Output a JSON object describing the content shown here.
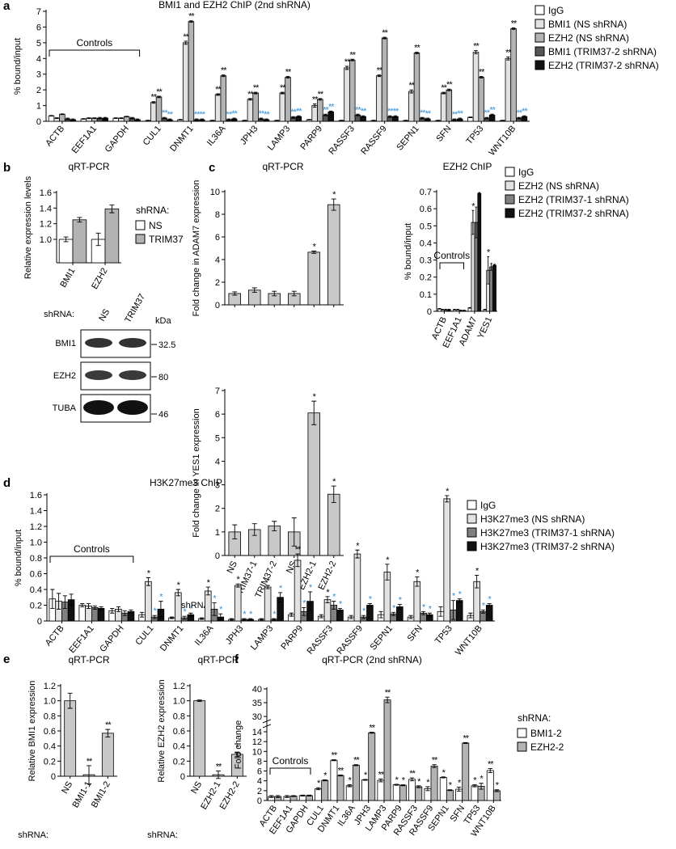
{
  "chart_data": [
    {
      "type": "bar",
      "panel": "a",
      "title": "BMI1 and EZH2 ChIP (2nd shRNA)",
      "ylabel": "% bound/input",
      "annotation": "Controls",
      "categories": [
        "ACTB",
        "EEF1A1",
        "GAPDH",
        "CUL1",
        "DNMT1",
        "IL36A",
        "JPH3",
        "LAMP3",
        "PARP9",
        "RASSF3",
        "RASSF9",
        "SEPN1",
        "SFN",
        "TP53",
        "WNT10B"
      ],
      "ylim": [
        0,
        7
      ],
      "yticks": [
        0,
        1,
        2,
        3,
        4,
        5,
        6,
        7
      ],
      "series": [
        {
          "name": "IgG",
          "color": "#ffffff",
          "values": [
            0.35,
            0.15,
            0.2,
            0.05,
            0.1,
            0.05,
            0.05,
            0.05,
            0.1,
            0.05,
            0.05,
            0.05,
            0.05,
            0.25,
            0.05
          ],
          "errors": [
            0.02,
            0.02,
            0.02,
            0.02,
            0.02,
            0.02,
            0.02,
            0.02,
            0.02,
            0.02,
            0.02,
            0.02,
            0.02,
            0.02,
            0.02
          ]
        },
        {
          "name": "BMI1 (NS shRNA)",
          "color": "#e2e2e2",
          "values": [
            0.2,
            0.2,
            0.2,
            1.2,
            5.0,
            1.7,
            1.4,
            1.8,
            1.0,
            3.4,
            2.9,
            1.9,
            1.8,
            4.4,
            4.0
          ],
          "errors": [
            0.02,
            0.02,
            0.02,
            0.05,
            0.1,
            0.05,
            0.05,
            0.05,
            0.1,
            0.1,
            0.05,
            0.1,
            0.05,
            0.1,
            0.1
          ],
          "sig": [
            null,
            null,
            null,
            "**",
            "**",
            "**",
            "**",
            "**",
            "**",
            "**",
            "**",
            "**",
            "**",
            "**",
            "**"
          ]
        },
        {
          "name": "EZH2 (NS shRNA)",
          "color": "#b3b3b3",
          "values": [
            0.45,
            0.2,
            0.3,
            1.55,
            6.35,
            2.9,
            1.8,
            2.8,
            1.4,
            3.9,
            5.3,
            4.35,
            2.0,
            2.8,
            5.9
          ],
          "errors": [
            0.02,
            0.02,
            0.02,
            0.05,
            0.05,
            0.05,
            0.05,
            0.05,
            0.05,
            0.05,
            0.05,
            0.05,
            0.05,
            0.05,
            0.05
          ],
          "sig": [
            null,
            null,
            null,
            "**",
            "**",
            "**",
            "**",
            "**",
            "**",
            "**",
            "**",
            "**",
            "**",
            "**",
            "**"
          ]
        },
        {
          "name": "BMI1 (TRIM37-2 shRNA)",
          "color": "#555555",
          "values": [
            0.15,
            0.2,
            0.2,
            0.2,
            0.1,
            0.1,
            0.15,
            0.25,
            0.4,
            0.4,
            0.3,
            0.2,
            0.1,
            0.2,
            0.2
          ],
          "errors": [
            0.05,
            0.05,
            0.05,
            0.05,
            0.05,
            0.05,
            0.05,
            0.05,
            0.05,
            0.05,
            0.05,
            0.05,
            0.05,
            0.05,
            0.05
          ],
          "sig": [
            null,
            null,
            null,
            "**",
            "**",
            "**",
            "**",
            "**",
            "**",
            "**",
            "**",
            "**",
            "**",
            "**",
            "**"
          ],
          "sig_color": "#3a8fd0"
        },
        {
          "name": "EZH2 (TRIM37-2 shRNA)",
          "color": "#111111",
          "values": [
            0.1,
            0.2,
            0.1,
            0.1,
            0.1,
            0.15,
            0.1,
            0.3,
            0.6,
            0.3,
            0.3,
            0.15,
            0.15,
            0.4,
            0.3
          ],
          "errors": [
            0.05,
            0.05,
            0.05,
            0.05,
            0.05,
            0.05,
            0.05,
            0.05,
            0.05,
            0.05,
            0.05,
            0.05,
            0.05,
            0.05,
            0.05
          ],
          "sig": [
            null,
            null,
            null,
            "**",
            "**",
            "**",
            "**",
            "**",
            "**",
            "**",
            "**",
            "**",
            "**",
            "**",
            "**"
          ],
          "sig_color": "#3a8fd0"
        }
      ]
    },
    {
      "type": "bar",
      "panel": "b",
      "title": "qRT-PCR",
      "ylabel": "Relative expression levels",
      "legend_title": "shRNA:",
      "categories": [
        "BMI1",
        "EZH2"
      ],
      "ylim": [
        0.7,
        1.6
      ],
      "yticks": [
        {
          "value": 1,
          "label": "1.0"
        },
        1.2,
        1.4,
        1.6
      ],
      "series": [
        {
          "name": "NS",
          "color": "#ffffff",
          "values": [
            1.0,
            1.0
          ],
          "errors": [
            0.03,
            0.08
          ]
        },
        {
          "name": "TRIM37",
          "color": "#b3b3b3",
          "values": [
            1.25,
            1.39
          ],
          "errors": [
            0.03,
            0.05
          ]
        }
      ]
    },
    {
      "type": "bar",
      "panel": "c",
      "title": "qRT-PCR",
      "ylabel": "Fold change in ADAM7 expression",
      "categories": [
        null,
        null,
        null,
        null,
        null,
        null
      ],
      "ylim": [
        0,
        10
      ],
      "yticks": [
        0,
        2,
        4,
        6,
        8,
        10
      ],
      "color": "#c8c8c8",
      "values": [
        1.0,
        1.3,
        1.0,
        1.0,
        4.65,
        8.85
      ],
      "errors": [
        0.15,
        0.2,
        0.2,
        0.2,
        0.1,
        0.5
      ],
      "sig": [
        null,
        null,
        null,
        null,
        "*",
        "*"
      ]
    },
    {
      "type": "bar",
      "ylabel": "Fold change in YES1 expression",
      "xlabel": "shRNA:",
      "categories": [
        "NS",
        "TRIM37-1",
        "TRIM37-2",
        "NS",
        "EZH2-1",
        "EZH2-2"
      ],
      "ylim": [
        0,
        7
      ],
      "yticks": [
        0,
        1,
        2,
        3,
        4,
        5,
        6,
        7
      ],
      "color": "#c8c8c8",
      "values": [
        1.0,
        1.1,
        1.25,
        1.0,
        6.05,
        2.6
      ],
      "errors": [
        0.3,
        0.25,
        0.2,
        0.6,
        0.5,
        0.35
      ],
      "sig": [
        null,
        null,
        null,
        null,
        "*",
        "*"
      ]
    },
    {
      "type": "bar",
      "title": "EZH2 ChIP",
      "ylabel": "% bound/input",
      "annotation": "Controls",
      "categories": [
        "ACTB",
        "EEF1A1",
        "ADAM7",
        "YES1"
      ],
      "ylim": [
        0,
        0.7
      ],
      "yticks": [
        0,
        0.1,
        0.2,
        0.3,
        0.4,
        0.5,
        0.6,
        0.7
      ],
      "series": [
        {
          "name": "IgG",
          "color": "#ffffff",
          "values": [
            0.015,
            0.01,
            0.02,
            0.01
          ],
          "errors": [
            0.002,
            0.002,
            0.002,
            0.002
          ]
        },
        {
          "name": "EZH2 (NS shRNA)",
          "color": "#e2e2e2",
          "values": [
            0.01,
            0.01,
            0.52,
            0.24
          ],
          "errors": [
            0.002,
            0.002,
            0.07,
            0.08
          ],
          "sig": [
            null,
            null,
            "*",
            "*"
          ]
        },
        {
          "name": "EZH2 (TRIM37-1 shRNA)",
          "color": "#808080",
          "values": [
            0.01,
            0.005,
            0.52,
            0.26
          ],
          "errors": [
            0.002,
            0.002,
            0.09,
            0.02
          ]
        },
        {
          "name": "EZH2 (TRIM37-2 shRNA)",
          "color": "#111111",
          "values": [
            0.01,
            0.005,
            0.69,
            0.27
          ],
          "errors": [
            0.002,
            0.002,
            0.005,
            0.005
          ]
        }
      ]
    },
    {
      "type": "bar",
      "panel": "d",
      "title": "H3K27me3 ChIP",
      "ylabel": "% bound/input",
      "annotation": "Controls",
      "categories": [
        "ACTB",
        "EEF1A1",
        "GAPDH",
        "CUL1",
        "DNMT1",
        "IL36A",
        "JPH3",
        "LAMP3",
        "PARP9",
        "RASSF3",
        "RASSF9",
        "SEPN1",
        "SFN",
        "TP53",
        "WNT10B"
      ],
      "ylim": [
        0,
        1.6
      ],
      "yticks": [
        0,
        0.2,
        0.4,
        0.6,
        0.8,
        {
          "value": 1,
          "label": "1.0"
        },
        1.2,
        1.4,
        1.6
      ],
      "series": [
        {
          "name": "IgG",
          "color": "#ffffff",
          "values": [
            0.28,
            0.2,
            0.13,
            0.08,
            0.04,
            0.03,
            0.02,
            0.02,
            0.08,
            0.06,
            0.05,
            0.08,
            0.05,
            0.12,
            0.07
          ],
          "errors": [
            0.12,
            0.02,
            0.03,
            0.03,
            0.01,
            0.01,
            0.01,
            0.01,
            0.02,
            0.02,
            0.02,
            0.04,
            0.02,
            0.06,
            0.03
          ]
        },
        {
          "name": "H3K27me3 (NS shRNA)",
          "color": "#e2e2e2",
          "values": [
            0.25,
            0.19,
            0.15,
            0.5,
            0.36,
            0.38,
            0.45,
            0.43,
            0.77,
            0.27,
            0.85,
            0.62,
            0.5,
            1.55,
            0.5
          ],
          "errors": [
            0.1,
            0.03,
            0.03,
            0.05,
            0.04,
            0.05,
            0.02,
            0.02,
            0.08,
            0.04,
            0.05,
            0.1,
            0.06,
            0.04,
            0.08
          ],
          "sig": [
            null,
            null,
            null,
            "*",
            "*",
            "*",
            "*",
            "*",
            "**",
            "*",
            "*",
            "*",
            "*",
            "*",
            "*"
          ]
        },
        {
          "name": "H3K27me3 (TRIM37-1 shRNA)",
          "color": "#808080",
          "values": [
            0.24,
            0.17,
            0.1,
            0.05,
            0.04,
            0.15,
            0.02,
            0.02,
            0.12,
            0.2,
            0.05,
            0.09,
            0.1,
            0.14,
            0.12
          ],
          "errors": [
            0.08,
            0.02,
            0.03,
            0.02,
            0.02,
            0.08,
            0.01,
            0.01,
            0.05,
            0.05,
            0.02,
            0.02,
            0.02,
            0.12,
            0.02
          ],
          "sig": [
            null,
            null,
            null,
            "*",
            "*",
            "*",
            "*",
            "*",
            "*",
            "*",
            "*",
            "*",
            "*",
            "*",
            "*"
          ],
          "sig_color": "#3a8fd0"
        },
        {
          "name": "H3K27me3 (TRIM37-2 shRNA)",
          "color": "#111111",
          "values": [
            0.27,
            0.16,
            0.12,
            0.15,
            0.08,
            0.05,
            0.02,
            0.3,
            0.25,
            0.14,
            0.2,
            0.18,
            0.08,
            0.26,
            0.2
          ],
          "errors": [
            0.07,
            0.02,
            0.02,
            0.1,
            0.02,
            0.04,
            0.01,
            0.06,
            0.12,
            0.02,
            0.02,
            0.03,
            0.02,
            0.02,
            0.02
          ],
          "sig": [
            null,
            null,
            null,
            "*",
            "*",
            "*",
            "*",
            "*",
            "*",
            "*",
            "*",
            "*",
            "*",
            "*",
            "*"
          ],
          "sig_color": "#3a8fd0"
        }
      ]
    },
    {
      "type": "bar",
      "panel": "e",
      "title": "qRT-PCR",
      "ylabel": "Relative BMI1 expression",
      "xlabel": "shRNA:",
      "categories": [
        "NS",
        "BMI1-1",
        "BMI1-2"
      ],
      "ylim": [
        0,
        1.2
      ],
      "yticks": [
        0,
        0.2,
        0.4,
        0.6,
        0.8,
        {
          "value": 1,
          "label": "1.0"
        },
        1.2
      ],
      "color": "#c8c8c8",
      "values": [
        1.0,
        0.02,
        0.57
      ],
      "errors": [
        0.1,
        0.12,
        0.05
      ],
      "sig": [
        null,
        "**",
        "**"
      ]
    },
    {
      "type": "bar",
      "title": "qRT-PCR",
      "ylabel": "Relative EZH2 expression",
      "xlabel": "shRNA:",
      "categories": [
        "NS",
        "EZH2-1",
        "EZH2-2"
      ],
      "ylim": [
        0,
        1.2
      ],
      "yticks": [
        0,
        0.2,
        0.4,
        0.6,
        0.8,
        {
          "value": 1,
          "label": "1.0"
        },
        1.2
      ],
      "color": "#c8c8c8",
      "values": [
        1.0,
        0.02,
        0.29
      ],
      "errors": [
        0.01,
        0.05,
        0.03
      ],
      "sig": [
        null,
        "**",
        "*"
      ]
    },
    {
      "type": "bar",
      "panel": "f",
      "title": "qRT-PCR (2nd shRNA)",
      "ylabel": "Fold change",
      "annotation": "Controls",
      "legend_title": "shRNA:",
      "categories": [
        "ACTB",
        "EEF1A1",
        "GAPDH",
        "CUL1",
        "DNMT1",
        "IL36A",
        "JPH3",
        "LAMP3",
        "PARP9",
        "RASSF3",
        "RASSF9",
        "SEPN1",
        "SFN",
        "TP53",
        "WNT10B"
      ],
      "ylim": [
        0,
        40
      ],
      "ybreak": [
        15,
        28
      ],
      "yticks": [
        0,
        2,
        4,
        6,
        8,
        10,
        12,
        14,
        30,
        35,
        40
      ],
      "series": [
        {
          "name": "BMI1-2",
          "color": "#ffffff",
          "values": [
            0.8,
            0.8,
            1.0,
            2.4,
            8.2,
            3.0,
            4.2,
            4.1,
            3.2,
            4.3,
            2.4,
            4.7,
            2.3,
            3.0,
            6.1
          ],
          "errors": [
            0.2,
            0.2,
            0.1,
            0.2,
            0.1,
            0.2,
            0.1,
            0.3,
            0.1,
            0.3,
            0.4,
            0.1,
            0.4,
            0.2,
            0.4
          ],
          "sig": [
            null,
            null,
            null,
            "*",
            "**",
            "*",
            "*",
            "**",
            "*",
            "**",
            "*",
            "*",
            "*",
            "*",
            "**"
          ]
        },
        {
          "name": "EZH2-2",
          "color": "#b3b3b3",
          "values": [
            0.8,
            0.9,
            1.0,
            4.1,
            5.1,
            7.2,
            13.8,
            36,
            3.1,
            2.8,
            7.0,
            2.1,
            11.7,
            2.9,
            2.0
          ],
          "errors": [
            0.2,
            0.1,
            0.1,
            0.1,
            0.1,
            0.1,
            0.1,
            1.0,
            0.1,
            0.2,
            0.3,
            0.1,
            0.1,
            0.6,
            0.2
          ],
          "sig": [
            null,
            null,
            null,
            "*",
            "**",
            "**",
            "**",
            "**",
            "*",
            "*",
            "**",
            "*",
            "**",
            "*",
            "*"
          ]
        }
      ]
    }
  ],
  "blot": {
    "shrna": "shRNA:",
    "lanes": [
      "NS",
      "TRIM37"
    ],
    "unit": "kDa",
    "rows": [
      "BMI1",
      "EZH2",
      "TUBA"
    ],
    "markers": [
      "32.5",
      "80",
      "46"
    ]
  }
}
